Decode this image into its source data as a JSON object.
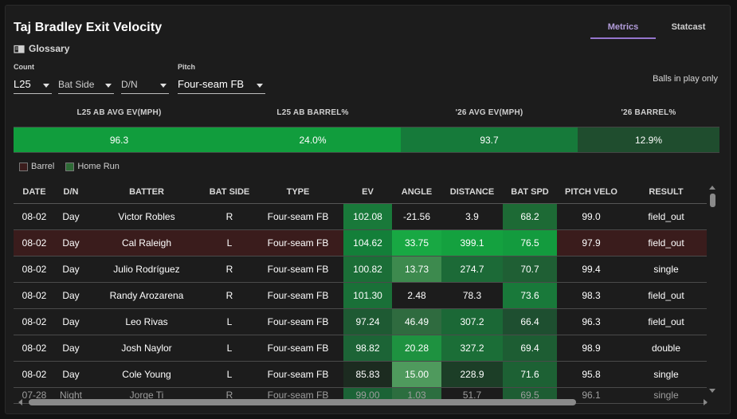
{
  "title": "Taj Bradley Exit Velocity",
  "glossary_label": "Glossary",
  "tabs": [
    {
      "label": "Metrics",
      "active": true
    },
    {
      "label": "Statcast",
      "active": false
    }
  ],
  "filters": {
    "count": {
      "label": "Count",
      "value": "L25"
    },
    "bat_side": {
      "label": "",
      "value": "Bat Side"
    },
    "dn": {
      "label": "",
      "value": "D/N"
    },
    "pitch": {
      "label": "Pitch",
      "value": "Four-seam FB"
    }
  },
  "balls_in_play_label": "Balls in play only",
  "summary": [
    {
      "label": "L25 AB AVG EV(MPH)",
      "value": "96.3",
      "color": "#119d3d"
    },
    {
      "label": "L25 AB BARREL%",
      "value": "24.0%",
      "color": "#119d3d"
    },
    {
      "label": "'26 AVG EV(MPH)",
      "value": "93.7",
      "color": "#167a3a"
    },
    {
      "label": "'26 BARREL%",
      "value": "12.9%",
      "color": "#1f4d2e"
    }
  ],
  "legend": [
    {
      "label": "Barrel",
      "color": "#3a1c1c"
    },
    {
      "label": "Home Run",
      "color": "#2e6b36"
    }
  ],
  "table": {
    "columns": [
      "DATE",
      "D/N",
      "BATTER",
      "BAT SIDE",
      "TYPE",
      "EV",
      "ANGLE",
      "DISTANCE",
      "BAT SPD",
      "PITCH VELO",
      "RESULT"
    ],
    "rows": [
      {
        "cells": [
          "08-02",
          "Day",
          "Victor Robles",
          "R",
          "Four-seam FB",
          "102.08",
          "-21.56",
          "3.9",
          "68.2",
          "99.0",
          "field_out"
        ],
        "barrel": false,
        "colors": {
          "5": "#19793a",
          "8": "#1d6a35"
        }
      },
      {
        "cells": [
          "08-02",
          "Day",
          "Cal Raleigh",
          "L",
          "Four-seam FB",
          "104.62",
          "33.75",
          "399.1",
          "76.5",
          "97.9",
          "field_out"
        ],
        "barrel": true,
        "colors": {
          "5": "#137f39",
          "6": "#18a843",
          "7": "#14a13f",
          "8": "#139b3e"
        }
      },
      {
        "cells": [
          "08-02",
          "Day",
          "Julio Rodríguez",
          "R",
          "Four-seam FB",
          "100.82",
          "13.73",
          "274.7",
          "70.7",
          "99.4",
          "single"
        ],
        "barrel": false,
        "colors": {
          "5": "#1b6e37",
          "6": "#3d8a4e",
          "7": "#1c6a37",
          "8": "#1f5f34"
        }
      },
      {
        "cells": [
          "08-02",
          "Day",
          "Randy Arozarena",
          "R",
          "Four-seam FB",
          "101.30",
          "2.48",
          "78.3",
          "73.6",
          "98.3",
          "field_out"
        ],
        "barrel": false,
        "colors": {
          "5": "#1a7038",
          "8": "#19793a"
        }
      },
      {
        "cells": [
          "08-02",
          "Day",
          "Leo Rivas",
          "L",
          "Four-seam FB",
          "97.24",
          "46.49",
          "307.2",
          "66.4",
          "96.3",
          "field_out"
        ],
        "barrel": false,
        "colors": {
          "5": "#1e5a33",
          "6": "#2f6b3f",
          "7": "#1b6836",
          "8": "#1e4f30"
        }
      },
      {
        "cells": [
          "08-02",
          "Day",
          "Josh Naylor",
          "L",
          "Four-seam FB",
          "98.82",
          "20.28",
          "327.2",
          "69.4",
          "98.9",
          "double"
        ],
        "barrel": false,
        "colors": {
          "5": "#1c6436",
          "6": "#1e9240",
          "7": "#1b6e37",
          "8": "#1d5d33"
        }
      },
      {
        "cells": [
          "08-02",
          "Day",
          "Cole Young",
          "L",
          "Four-seam FB",
          "85.83",
          "15.00",
          "228.9",
          "71.6",
          "95.8",
          "single"
        ],
        "barrel": false,
        "colors": {
          "5": "#1c2b20",
          "6": "#4f9a5d",
          "7": "#1c3e27",
          "8": "#1d6134"
        }
      },
      {
        "cells": [
          "07-28",
          "Night",
          "Jorge Ti",
          "R",
          "Four-seam FB",
          "99.00",
          "1.03",
          "51.7",
          "69.5",
          "96.1",
          "single"
        ],
        "barrel": false,
        "cut": true,
        "colors": {
          "5": "#1b6336",
          "6": "#2c6e3f",
          "8": "#1d5d33"
        }
      }
    ]
  }
}
